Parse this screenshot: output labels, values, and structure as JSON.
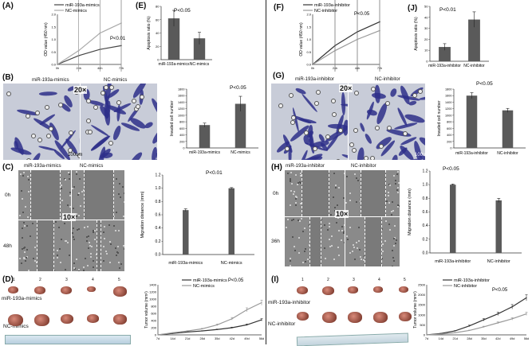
{
  "divider": true,
  "left": {
    "A": {
      "label": "(A)",
      "legend": [
        "miR-193a-mimics",
        "NC-mimics"
      ],
      "ylabel": "OD value (450 nm)",
      "xticks": [
        "0h",
        "24h",
        "48h",
        "72h"
      ],
      "p": "P<0.01"
    },
    "E": {
      "label": "(E)",
      "ylabel": "Apoptosis ratio (%)",
      "p": "P<0.05",
      "cats": [
        "miR-193a-mimics",
        "NC-mimics"
      ]
    },
    "B": {
      "label": "(B)",
      "img1": "miR-193a-mimics",
      "img2": "NC-mimics",
      "mag": "20×",
      "scale": "100um",
      "ylabel": "Invaded cell number",
      "p": "P<0.05",
      "cats": [
        "miR-193a-mimics",
        "NC-mimics"
      ]
    },
    "C": {
      "label": "(C)",
      "img1": "miR-193a-mimics",
      "img2": "NC-mimics",
      "mag": "10×",
      "row1": "0h",
      "row2": "48h",
      "ylabel": "Migration distance (mm)",
      "p": "P<0.01",
      "cats": [
        "miR-193a-mimics",
        "NC-mimics"
      ]
    },
    "D": {
      "label": "(D)",
      "row1": "miR-193a-mimics",
      "row2": "NC-mimics",
      "nums": [
        "1",
        "2",
        "3",
        "4",
        "5"
      ],
      "legend": [
        "miR-193a-mimics",
        "NC-mimics"
      ],
      "ylabel": "Tumor volume (mm³)",
      "p": "P<0.05"
    }
  },
  "right": {
    "F": {
      "label": "(F)",
      "legend": [
        "miR-193a-inhibitor",
        "NC-inhibitor"
      ],
      "ylabel": "OD value (450 nm)",
      "xticks": [
        "0h",
        "24h",
        "48h",
        "72h"
      ],
      "p": "P<0.05"
    },
    "J": {
      "label": "(J)",
      "ylabel": "Apoptosis ratio (%)",
      "p": "P<0.01",
      "cats": [
        "miR-193a-inhibitor",
        "NC-inhibitor"
      ]
    },
    "G": {
      "label": "(G)",
      "img1": "miR-193a-inhibitor",
      "img2": "NC-inhibitor",
      "mag": "20×",
      "scale": "100um",
      "ylabel": "Invaded cell number",
      "p": "P<0.05",
      "cats": [
        "miR-193a-inhibitor",
        "NC-inhibitor"
      ]
    },
    "H": {
      "label": "(H)",
      "img1": "miR-193a-inhibitor",
      "img2": "NC-inhibitor",
      "mag": "10×",
      "row1": "0h",
      "row2": "36h",
      "ylabel": "Migration distance (mm)",
      "p": "P<0.05",
      "cats": [
        "miR-193a-inhibitor",
        "NC-inhibitor"
      ]
    },
    "I": {
      "label": "(I)",
      "row1": "miR-193a-inhibitor",
      "row2": "NC-inhibitor",
      "nums": [
        "1",
        "2",
        "3",
        "4",
        "5"
      ],
      "legend": [
        "miR-193a-inhibitor",
        "NC-inhibitor"
      ],
      "ylabel": "Tumor volume (mm³)",
      "p": "P<0.05"
    }
  },
  "chart_data": [
    {
      "id": "A",
      "type": "line",
      "x": [
        "0h",
        "24h",
        "48h",
        "72h"
      ],
      "series": [
        {
          "name": "miR-193a-mimics",
          "values": [
            0.0,
            0.35,
            0.6,
            0.75
          ]
        },
        {
          "name": "NC-mimics",
          "values": [
            0.0,
            0.55,
            1.25,
            1.65
          ]
        }
      ],
      "ylim": [
        0,
        2
      ],
      "yticks": [
        "0.0",
        "0.5",
        "1.0",
        "1.5",
        "2.0"
      ],
      "ylabel": "OD value (450 nm)"
    },
    {
      "id": "E",
      "type": "bar",
      "categories": [
        "miR-193a-mimics",
        "NC-mimics"
      ],
      "values": [
        62,
        32
      ],
      "errors": [
        12,
        9
      ],
      "ylim": [
        0,
        80
      ],
      "yticks": [
        "0",
        "20",
        "40",
        "60",
        "80"
      ],
      "ylabel": "Apoptosis ratio (%)"
    },
    {
      "id": "B",
      "type": "bar",
      "categories": [
        "miR-193a-mimics",
        "NC-mimics"
      ],
      "values": [
        700,
        1350
      ],
      "errors": [
        60,
        230
      ],
      "ylim": [
        0,
        1800
      ],
      "yticks": [
        "0",
        "200",
        "400",
        "600",
        "800",
        "1000",
        "1200",
        "1400",
        "1600",
        "1800"
      ],
      "ylabel": "Invaded cell number"
    },
    {
      "id": "C",
      "type": "bar",
      "categories": [
        "miR-193a-mimics",
        "NC-mimics"
      ],
      "values": [
        0.67,
        1.0
      ],
      "errors": [
        0.02,
        0.01
      ],
      "ylim": [
        0,
        1.2
      ],
      "yticks": [
        "0.0",
        "0.2",
        "0.4",
        "0.6",
        "0.8",
        "1.0",
        "1.2"
      ],
      "ylabel": "Migration distance (mm)"
    },
    {
      "id": "D",
      "type": "line",
      "x": [
        "7d",
        "14d",
        "21d",
        "28d",
        "35d",
        "42d",
        "49d",
        "56d"
      ],
      "xticks": [
        "7d",
        "14d",
        "21d",
        "28d",
        "35d",
        "42d",
        "49d",
        "56d"
      ],
      "series": [
        {
          "name": "miR-193a-mimics",
          "values": [
            0,
            40,
            80,
            110,
            150,
            200,
            280,
            420
          ]
        },
        {
          "name": "NC-mimics",
          "values": [
            0,
            60,
            110,
            170,
            280,
            450,
            700,
            900
          ]
        }
      ],
      "ylim": [
        0,
        1400
      ],
      "yticks": [
        "0",
        "200",
        "400",
        "600",
        "800",
        "1000",
        "1200",
        "1400"
      ],
      "ylabel": "Tumor volume (mm³)"
    },
    {
      "id": "F",
      "type": "line",
      "x": [
        "0h",
        "24h",
        "48h",
        "72h"
      ],
      "series": [
        {
          "name": "miR-193a-inhibitor",
          "values": [
            0.0,
            0.75,
            1.3,
            1.7
          ]
        },
        {
          "name": "NC-inhibitor",
          "values": [
            0.0,
            0.55,
            1.0,
            1.35
          ]
        }
      ],
      "ylim": [
        0,
        2
      ],
      "yticks": [
        "0.0",
        "0.5",
        "1.0",
        "1.5",
        "2.0"
      ],
      "ylabel": "OD value (450 nm)"
    },
    {
      "id": "J",
      "type": "bar",
      "categories": [
        "miR-193a-inhibitor",
        "NC-inhibitor"
      ],
      "values": [
        13,
        38
      ],
      "errors": [
        3,
        7
      ],
      "ylim": [
        0,
        50
      ],
      "yticks": [
        "0",
        "10",
        "20",
        "30",
        "40",
        "50"
      ],
      "ylabel": "Apoptosis ratio (%)"
    },
    {
      "id": "G",
      "type": "bar",
      "categories": [
        "miR-193a-inhibitor",
        "NC-inhibitor"
      ],
      "values": [
        1600,
        1150
      ],
      "errors": [
        90,
        60
      ],
      "ylim": [
        0,
        1800
      ],
      "yticks": [
        "0",
        "200",
        "400",
        "600",
        "800",
        "1000",
        "1200",
        "1400",
        "1600",
        "1800"
      ],
      "ylabel": "Invaded cell number"
    },
    {
      "id": "H",
      "type": "bar",
      "categories": [
        "miR-193a-inhibitor",
        "NC-inhibitor"
      ],
      "values": [
        1.0,
        0.77
      ],
      "errors": [
        0.01,
        0.03
      ],
      "ylim": [
        0,
        1.2
      ],
      "yticks": [
        "0.0",
        "0.2",
        "0.4",
        "0.6",
        "0.8",
        "1.0",
        "1.2"
      ],
      "ylabel": "Migration distance (mm)"
    },
    {
      "id": "I",
      "type": "line",
      "x": [
        "7d",
        "14d",
        "21d",
        "28d",
        "35d",
        "42d",
        "49d",
        "56d"
      ],
      "xticks": [
        "7d",
        "14d",
        "21d",
        "28d",
        "35d",
        "42d",
        "49d",
        "56d"
      ],
      "series": [
        {
          "name": "miR-193a-inhibitor",
          "values": [
            0,
            70,
            200,
            450,
            750,
            1050,
            1400,
            1850
          ]
        },
        {
          "name": "NC-inhibitor",
          "values": [
            0,
            40,
            110,
            220,
            400,
            600,
            800,
            1050
          ]
        }
      ],
      "ylim": [
        0,
        2500
      ],
      "yticks": [
        "0",
        "500",
        "1000",
        "1500",
        "2000",
        "2500"
      ],
      "ylabel": "Tumor volume (mm³)"
    }
  ]
}
